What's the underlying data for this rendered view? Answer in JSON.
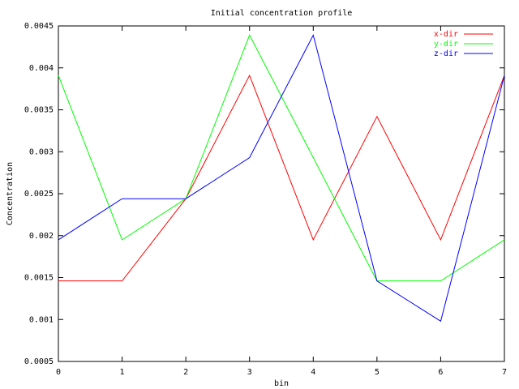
{
  "chart_data": {
    "type": "line",
    "title": "Initial concentration profile",
    "x_label": "bin",
    "y_label": "Concentration",
    "x": [
      0,
      1,
      2,
      3,
      4,
      5,
      6,
      7
    ],
    "series": [
      {
        "name": "x-dir",
        "color": "#ff0000",
        "values": [
          0.00146,
          0.00146,
          0.00244,
          0.00391,
          0.00195,
          0.00342,
          0.00195,
          0.00391
        ]
      },
      {
        "name": "y-dir",
        "color": "#00ff00",
        "values": [
          0.00391,
          0.00195,
          0.00244,
          0.00439,
          0.00293,
          0.00146,
          0.00146,
          0.00195
        ]
      },
      {
        "name": "z-dir",
        "color": "#0000ff",
        "values": [
          0.00195,
          0.00244,
          0.00244,
          0.00293,
          0.00439,
          0.00146,
          0.00098,
          0.00391
        ]
      }
    ],
    "xlim": [
      0,
      7
    ],
    "xticks": [
      0,
      1,
      2,
      3,
      4,
      5,
      6,
      7
    ],
    "ylim": [
      0.0005,
      0.0045
    ],
    "yticks": [
      0.0005,
      0.001,
      0.0015,
      0.002,
      0.0025,
      0.003,
      0.0035,
      0.004,
      0.0045
    ],
    "legend": "top-right"
  }
}
